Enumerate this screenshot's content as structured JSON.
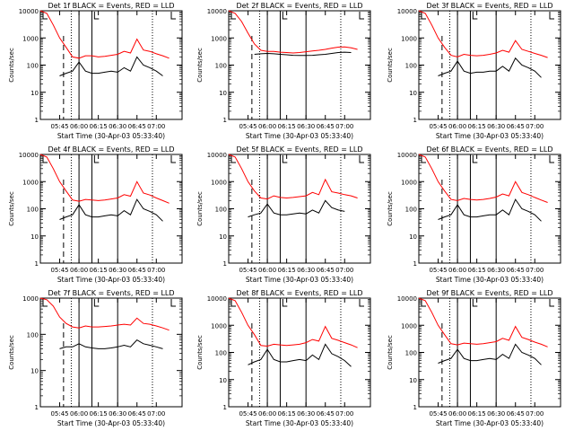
{
  "chart_data": [
    {
      "type": "line",
      "title": "Det 1f BLACK = Events, RED = LLD",
      "xlabel": "Start Time (30-Apr-03 05:33:40)",
      "ylabel": "Counts/sec",
      "yscale": "log",
      "ylim": [
        1,
        10000
      ],
      "x_ticks": [
        "05:45",
        "06:00",
        "06:15",
        "06:30",
        "06:45",
        "07:00"
      ],
      "y_ticks": [
        "1",
        "10",
        "100",
        "1000",
        "10000"
      ],
      "series": [
        {
          "color": "#ff0000",
          "x_min": [
            0,
            5,
            10,
            15,
            20,
            25,
            30,
            35,
            40,
            45,
            50,
            55,
            60,
            65,
            70,
            75,
            80,
            85,
            90,
            95,
            100
          ],
          "values": [
            10000,
            8000,
            3000,
            1000,
            450,
            200,
            180,
            220,
            220,
            200,
            210,
            230,
            250,
            320,
            280,
            900,
            360,
            320,
            260,
            220,
            180
          ]
        },
        {
          "color": "#000000",
          "x_min": [
            15,
            20,
            25,
            30,
            35,
            40,
            45,
            50,
            55,
            60,
            65,
            70,
            75,
            80,
            85,
            90,
            95
          ],
          "values": [
            40,
            50,
            60,
            130,
            60,
            50,
            50,
            55,
            60,
            55,
            80,
            60,
            200,
            100,
            80,
            60,
            40
          ]
        }
      ]
    },
    {
      "type": "line",
      "title": "Det 2f BLACK = Events, RED = LLD",
      "xlabel": "Start Time (30-Apr-03 05:33:40)",
      "ylabel": "Counts/sec",
      "yscale": "log",
      "ylim": [
        1,
        10000
      ],
      "x_ticks": [
        "05:45",
        "06:00",
        "06:15",
        "06:30",
        "06:45",
        "07:00"
      ],
      "y_ticks": [
        "1",
        "10",
        "100",
        "1000",
        "10000"
      ],
      "series": [
        {
          "color": "#ff0000",
          "x_min": [
            0,
            5,
            10,
            15,
            20,
            25,
            30,
            35,
            40,
            45,
            50,
            55,
            60,
            65,
            70,
            75,
            80,
            85,
            90,
            95,
            100
          ],
          "values": [
            10000,
            8000,
            4000,
            1500,
            600,
            350,
            320,
            320,
            300,
            290,
            280,
            290,
            310,
            330,
            350,
            380,
            420,
            460,
            470,
            430,
            380
          ]
        },
        {
          "color": "#000000",
          "x_min": [
            20,
            25,
            30,
            35,
            40,
            45,
            50,
            55,
            60,
            65,
            70,
            75,
            80,
            85,
            90,
            95
          ],
          "values": [
            250,
            260,
            270,
            260,
            250,
            240,
            230,
            225,
            225,
            230,
            240,
            250,
            270,
            290,
            300,
            290
          ]
        }
      ]
    },
    {
      "type": "line",
      "title": "Det 3f BLACK = Events, RED = LLD",
      "xlabel": "Start Time (30-Apr-03 05:33:40)",
      "ylabel": "Counts/sec",
      "yscale": "log",
      "ylim": [
        1,
        10000
      ],
      "x_ticks": [
        "05:45",
        "06:00",
        "06:15",
        "06:30",
        "06:45",
        "07:00"
      ],
      "y_ticks": [
        "1",
        "10",
        "100",
        "1000",
        "10000"
      ],
      "series": [
        {
          "color": "#ff0000",
          "x_min": [
            0,
            5,
            10,
            15,
            20,
            25,
            30,
            35,
            40,
            45,
            50,
            55,
            60,
            65,
            70,
            75,
            80,
            85,
            90,
            95,
            100
          ],
          "values": [
            10000,
            8000,
            3000,
            1000,
            450,
            230,
            200,
            250,
            230,
            220,
            230,
            250,
            280,
            350,
            300,
            800,
            380,
            320,
            270,
            230,
            190
          ]
        },
        {
          "color": "#000000",
          "x_min": [
            15,
            20,
            25,
            30,
            35,
            40,
            45,
            50,
            55,
            60,
            65,
            70,
            75,
            80,
            85,
            90,
            95
          ],
          "values": [
            40,
            50,
            60,
            140,
            60,
            50,
            55,
            55,
            60,
            60,
            90,
            60,
            180,
            100,
            80,
            60,
            35
          ]
        }
      ]
    },
    {
      "type": "line",
      "title": "Det 4f BLACK = Events, RED = LLD",
      "xlabel": "Start Time (30-Apr-03 05:33:40)",
      "ylabel": "Counts/sec",
      "yscale": "log",
      "ylim": [
        1,
        10000
      ],
      "x_ticks": [
        "05:45",
        "06:00",
        "06:15",
        "06:30",
        "06:45",
        "07:00"
      ],
      "y_ticks": [
        "1",
        "10",
        "100",
        "1000",
        "10000"
      ],
      "series": [
        {
          "color": "#ff0000",
          "x_min": [
            0,
            5,
            10,
            15,
            20,
            25,
            30,
            35,
            40,
            45,
            50,
            55,
            60,
            65,
            70,
            75,
            80,
            85,
            90,
            95,
            100
          ],
          "values": [
            10000,
            8000,
            3000,
            1000,
            450,
            210,
            190,
            220,
            210,
            200,
            210,
            230,
            250,
            330,
            290,
            1000,
            380,
            320,
            250,
            200,
            160
          ]
        },
        {
          "color": "#000000",
          "x_min": [
            15,
            20,
            25,
            30,
            35,
            40,
            45,
            50,
            55,
            60,
            65,
            70,
            75,
            80,
            85,
            90,
            95
          ],
          "values": [
            40,
            50,
            60,
            140,
            60,
            50,
            50,
            55,
            60,
            55,
            85,
            60,
            220,
            100,
            80,
            60,
            35
          ]
        }
      ]
    },
    {
      "type": "line",
      "title": "Det 5f BLACK = Events, RED = LLD",
      "xlabel": "Start Time (30-Apr-03 05:33:40)",
      "ylabel": "Counts/sec",
      "yscale": "log",
      "ylim": [
        1,
        10000
      ],
      "x_ticks": [
        "05:45",
        "06:00",
        "06:15",
        "06:30",
        "06:45",
        "07:00"
      ],
      "y_ticks": [
        "1",
        "10",
        "100",
        "1000",
        "10000"
      ],
      "series": [
        {
          "color": "#ff0000",
          "x_min": [
            0,
            5,
            10,
            15,
            20,
            25,
            30,
            35,
            40,
            45,
            50,
            55,
            60,
            65,
            70,
            75,
            80,
            85,
            90,
            95,
            100
          ],
          "values": [
            10000,
            8000,
            3000,
            1000,
            450,
            250,
            230,
            300,
            260,
            250,
            260,
            280,
            300,
            400,
            330,
            1200,
            420,
            380,
            330,
            300,
            250
          ]
        },
        {
          "color": "#000000",
          "x_min": [
            15,
            20,
            25,
            30,
            35,
            40,
            45,
            50,
            55,
            60,
            65,
            70,
            75,
            80,
            85,
            90
          ],
          "values": [
            50,
            60,
            70,
            150,
            70,
            60,
            60,
            65,
            70,
            65,
            90,
            70,
            200,
            110,
            90,
            80
          ]
        }
      ]
    },
    {
      "type": "line",
      "title": "Det 6f BLACK = Events, RED = LLD",
      "xlabel": "Start Time (30-Apr-03 05:33:40)",
      "ylabel": "Counts/sec",
      "yscale": "log",
      "ylim": [
        1,
        10000
      ],
      "x_ticks": [
        "05:45",
        "06:00",
        "06:15",
        "06:30",
        "06:45",
        "07:00"
      ],
      "y_ticks": [
        "1",
        "10",
        "100",
        "1000",
        "10000"
      ],
      "series": [
        {
          "color": "#ff0000",
          "x_min": [
            0,
            5,
            10,
            15,
            20,
            25,
            30,
            35,
            40,
            45,
            50,
            55,
            60,
            65,
            70,
            75,
            80,
            85,
            90,
            95,
            100
          ],
          "values": [
            10000,
            8000,
            3000,
            1000,
            450,
            220,
            200,
            240,
            220,
            210,
            220,
            240,
            270,
            350,
            300,
            1000,
            400,
            330,
            260,
            210,
            170
          ]
        },
        {
          "color": "#000000",
          "x_min": [
            15,
            20,
            25,
            30,
            35,
            40,
            45,
            50,
            55,
            60,
            65,
            70,
            75,
            80,
            85,
            90,
            95
          ],
          "values": [
            40,
            50,
            60,
            140,
            60,
            50,
            50,
            55,
            60,
            60,
            90,
            60,
            220,
            100,
            80,
            60,
            35
          ]
        }
      ]
    },
    {
      "type": "line",
      "title": "Det 7f BLACK = Events, RED = LLD",
      "xlabel": "Start Time (30-Apr-03 05:33:40)",
      "ylabel": "Counts/sec",
      "yscale": "log",
      "ylim": [
        1,
        1000
      ],
      "x_ticks": [
        "05:45",
        "06:00",
        "06:15",
        "06:30",
        "06:45",
        "07:00"
      ],
      "y_ticks": [
        "1",
        "10",
        "100",
        "1000"
      ],
      "series": [
        {
          "color": "#ff0000",
          "x_min": [
            0,
            5,
            10,
            15,
            20,
            25,
            30,
            35,
            40,
            45,
            50,
            55,
            60,
            65,
            70,
            75,
            80,
            85,
            90,
            95,
            100
          ],
          "values": [
            1000,
            900,
            600,
            300,
            200,
            160,
            150,
            170,
            160,
            160,
            165,
            170,
            180,
            190,
            180,
            280,
            200,
            190,
            170,
            150,
            130
          ]
        },
        {
          "color": "#000000",
          "x_min": [
            15,
            20,
            25,
            30,
            35,
            40,
            45,
            50,
            55,
            60,
            65,
            70,
            75,
            80,
            85,
            90,
            95
          ],
          "values": [
            40,
            45,
            45,
            55,
            45,
            42,
            40,
            40,
            42,
            45,
            50,
            45,
            70,
            55,
            50,
            45,
            40
          ]
        }
      ]
    },
    {
      "type": "line",
      "title": "Det 8f BLACK = Events, RED = LLD",
      "xlabel": "Start Time (30-Apr-03 05:33:40)",
      "ylabel": "Counts/sec",
      "yscale": "log",
      "ylim": [
        1,
        10000
      ],
      "x_ticks": [
        "05:45",
        "06:00",
        "06:15",
        "06:30",
        "06:45",
        "07:00"
      ],
      "y_ticks": [
        "1",
        "10",
        "100",
        "1000",
        "10000"
      ],
      "series": [
        {
          "color": "#ff0000",
          "x_min": [
            0,
            5,
            10,
            15,
            20,
            25,
            30,
            35,
            40,
            45,
            50,
            55,
            60,
            65,
            70,
            75,
            80,
            85,
            90,
            95,
            100
          ],
          "values": [
            10000,
            8000,
            3000,
            1000,
            450,
            180,
            170,
            200,
            190,
            180,
            190,
            200,
            230,
            300,
            260,
            900,
            330,
            280,
            230,
            190,
            150
          ]
        },
        {
          "color": "#000000",
          "x_min": [
            15,
            20,
            25,
            30,
            35,
            40,
            45,
            50,
            55,
            60,
            65,
            70,
            75,
            80,
            85,
            90,
            95
          ],
          "values": [
            35,
            45,
            55,
            130,
            55,
            45,
            45,
            50,
            55,
            50,
            80,
            55,
            200,
            90,
            70,
            50,
            30
          ]
        }
      ]
    },
    {
      "type": "line",
      "title": "Det 9f BLACK = Events, RED = LLD",
      "xlabel": "Start Time (30-Apr-03 05:33:40)",
      "ylabel": "Counts/sec",
      "yscale": "log",
      "ylim": [
        1,
        10000
      ],
      "x_ticks": [
        "05:45",
        "06:00",
        "06:15",
        "06:30",
        "06:45",
        "07:00"
      ],
      "y_ticks": [
        "1",
        "10",
        "100",
        "1000",
        "10000"
      ],
      "series": [
        {
          "color": "#ff0000",
          "x_min": [
            0,
            5,
            10,
            15,
            20,
            25,
            30,
            35,
            40,
            45,
            50,
            55,
            60,
            65,
            70,
            75,
            80,
            85,
            90,
            95,
            100
          ],
          "values": [
            10000,
            8000,
            3000,
            1000,
            450,
            210,
            190,
            220,
            210,
            200,
            210,
            230,
            250,
            330,
            280,
            900,
            360,
            300,
            240,
            200,
            160
          ]
        },
        {
          "color": "#000000",
          "x_min": [
            15,
            20,
            25,
            30,
            35,
            40,
            45,
            50,
            55,
            60,
            65,
            70,
            75,
            80,
            85,
            90,
            95
          ],
          "values": [
            40,
            50,
            60,
            130,
            60,
            50,
            50,
            55,
            60,
            55,
            85,
            60,
            200,
            100,
            80,
            60,
            35
          ]
        }
      ]
    }
  ]
}
